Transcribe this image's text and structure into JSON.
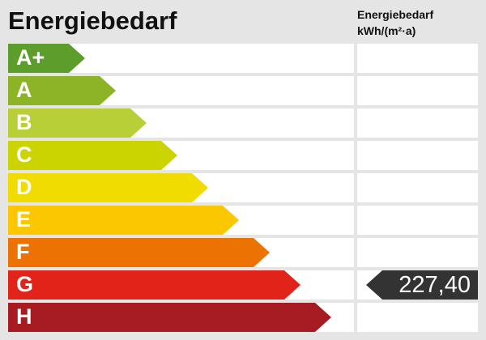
{
  "title": "Energiebedarf",
  "column_header": {
    "line1": "Energiebedarf",
    "line2": "kWh/(m²·a)"
  },
  "classes": [
    {
      "label": "A+",
      "color": "#5c9d2b"
    },
    {
      "label": "A",
      "color": "#8cb426"
    },
    {
      "label": "B",
      "color": "#b9cf37"
    },
    {
      "label": "C",
      "color": "#cbd300"
    },
    {
      "label": "D",
      "color": "#f0dc00"
    },
    {
      "label": "E",
      "color": "#fbc700"
    },
    {
      "label": "F",
      "color": "#ec7204"
    },
    {
      "label": "G",
      "color": "#e2231a"
    },
    {
      "label": "H",
      "color": "#a71b22"
    }
  ],
  "current": {
    "class_index": 7,
    "value": "227,40",
    "color": "#333333"
  }
}
